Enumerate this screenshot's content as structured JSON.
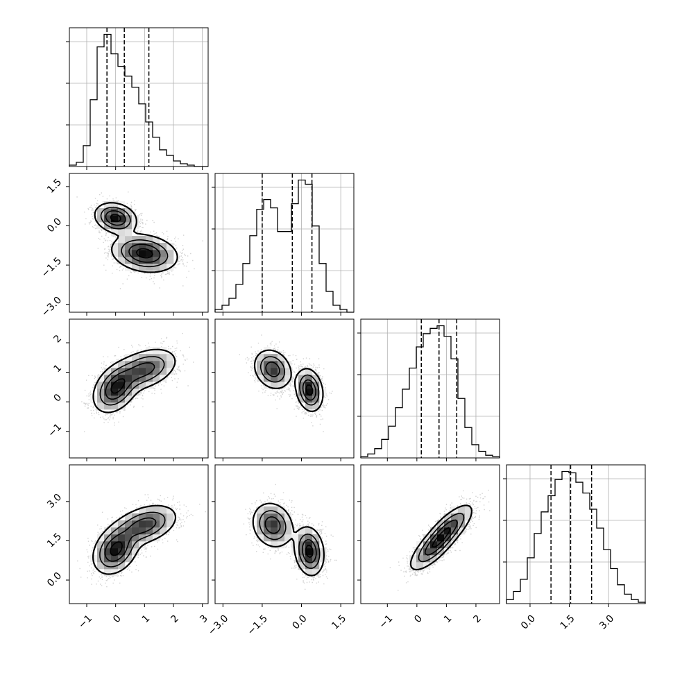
{
  "chart_data": {
    "type": "corner",
    "title": "",
    "variables": [
      {
        "range": [
          -1.6,
          3.2
        ],
        "ticks": [
          -1,
          0,
          1,
          2,
          3
        ],
        "tick_labels": [
          "−1",
          "0",
          "1",
          "2",
          "3"
        ],
        "quantiles": [
          -0.3,
          0.3,
          1.15
        ],
        "hist_bins": [
          -1.6,
          3.2,
          20
        ],
        "hist_values": [
          1,
          3,
          15,
          48,
          86,
          95,
          81,
          72,
          65,
          57,
          45,
          32,
          21,
          12,
          8,
          4,
          2,
          1,
          0,
          0
        ]
      },
      {
        "range": [
          -3.3,
          2.0
        ],
        "ticks": [
          -3.0,
          -1.5,
          0.0,
          1.5
        ],
        "tick_labels": [
          "−3.0",
          "−1.5",
          "0.0",
          "1.5"
        ],
        "quantiles": [
          -1.5,
          -0.35,
          0.4
        ],
        "hist_bins": [
          -3.3,
          2.0,
          20
        ],
        "hist_values": [
          2,
          5,
          10,
          20,
          35,
          55,
          74,
          81,
          75,
          58,
          58,
          78,
          95,
          92,
          62,
          35,
          15,
          5,
          2,
          0
        ]
      },
      {
        "range": [
          -1.9,
          2.8
        ],
        "ticks": [
          -1,
          0,
          1,
          2
        ],
        "tick_labels": [
          "−1",
          "0",
          "1",
          "2"
        ],
        "quantiles": [
          0.15,
          0.75,
          1.35
        ],
        "hist_bins": [
          -1.9,
          2.8,
          20
        ],
        "hist_values": [
          1,
          3,
          7,
          14,
          24,
          38,
          52,
          68,
          84,
          94,
          98,
          100,
          92,
          75,
          45,
          23,
          10,
          5,
          2,
          1
        ]
      },
      {
        "range": [
          -0.9,
          4.4
        ],
        "ticks": [
          0.0,
          1.5,
          3.0
        ],
        "tick_labels": [
          "0.0",
          "1.5",
          "3.0"
        ],
        "quantiles": [
          0.8,
          1.55,
          2.35
        ],
        "hist_bins": [
          -0.9,
          4.4,
          20
        ],
        "hist_values": [
          3,
          9,
          18,
          34,
          52,
          68,
          80,
          92,
          98,
          97,
          90,
          82,
          70,
          56,
          40,
          26,
          14,
          7,
          3,
          1
        ]
      }
    ],
    "pairs": [
      {
        "row": 1,
        "col": 0,
        "modes": [
          {
            "mean": [
              0.0,
              0.3
            ],
            "sd": [
              0.35,
              0.28
            ],
            "rho": -0.2,
            "w": 0.5
          },
          {
            "mean": [
              1.0,
              -1.05
            ],
            "sd": [
              0.55,
              0.35
            ],
            "rho": -0.2,
            "w": 0.5
          }
        ]
      },
      {
        "row": 2,
        "col": 0,
        "modes": [
          {
            "mean": [
              0.0,
              0.45
            ],
            "sd": [
              0.38,
              0.4
            ],
            "rho": 0.35,
            "w": 0.55
          },
          {
            "mean": [
              1.0,
              1.1
            ],
            "sd": [
              0.55,
              0.35
            ],
            "rho": 0.4,
            "w": 0.45
          }
        ]
      },
      {
        "row": 2,
        "col": 1,
        "modes": [
          {
            "mean": [
              -1.1,
              1.1
            ],
            "sd": [
              0.35,
              0.33
            ],
            "rho": -0.2,
            "w": 0.45
          },
          {
            "mean": [
              0.3,
              0.4
            ],
            "sd": [
              0.25,
              0.35
            ],
            "rho": -0.2,
            "w": 0.55
          }
        ]
      },
      {
        "row": 3,
        "col": 0,
        "modes": [
          {
            "mean": [
              0.0,
              1.15
            ],
            "sd": [
              0.38,
              0.45
            ],
            "rho": 0.3,
            "w": 0.55
          },
          {
            "mean": [
              1.0,
              2.1
            ],
            "sd": [
              0.55,
              0.38
            ],
            "rho": 0.4,
            "w": 0.45
          }
        ]
      },
      {
        "row": 3,
        "col": 1,
        "modes": [
          {
            "mean": [
              -1.1,
              2.1
            ],
            "sd": [
              0.38,
              0.42
            ],
            "rho": -0.15,
            "w": 0.45
          },
          {
            "mean": [
              0.3,
              1.1
            ],
            "sd": [
              0.27,
              0.45
            ],
            "rho": -0.15,
            "w": 0.55
          }
        ]
      },
      {
        "row": 3,
        "col": 2,
        "modes": [
          {
            "mean": [
              0.55,
              1.25
            ],
            "sd": [
              0.4,
              0.45
            ],
            "rho": 0.75,
            "w": 0.5
          },
          {
            "mean": [
              1.1,
              2.0
            ],
            "sd": [
              0.4,
              0.45
            ],
            "rho": 0.75,
            "w": 0.5
          }
        ]
      }
    ],
    "contour_levels": [
      0.12,
      0.35,
      0.62,
      0.88
    ],
    "grid": true,
    "colors": {
      "line": "#000000",
      "grid": "#b0b0b0",
      "points": "#000000"
    }
  }
}
